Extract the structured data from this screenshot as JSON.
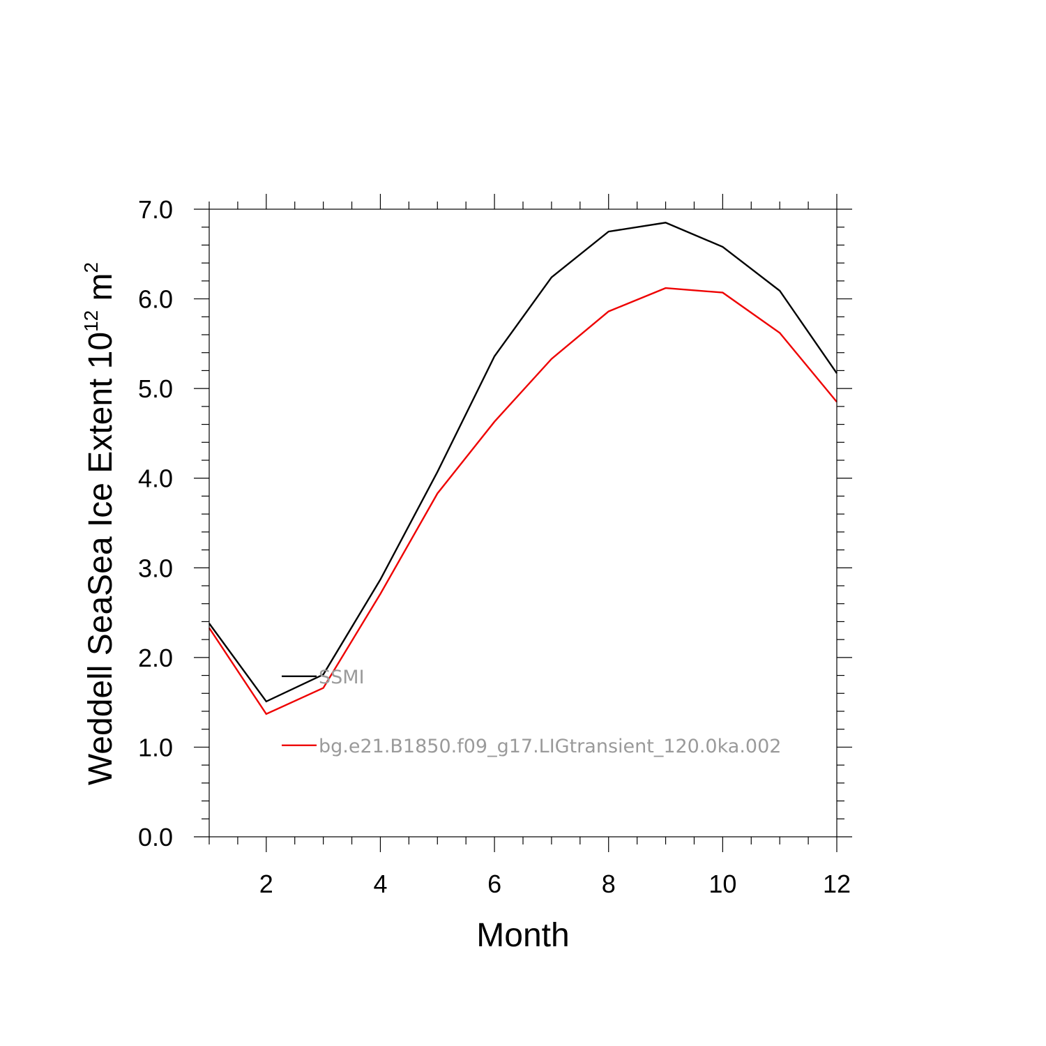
{
  "chart_data": {
    "type": "line",
    "title": "",
    "xlabel": "Month",
    "ylabel": {
      "main": "Weddell SeaSea Ice Extent 10",
      "sup1": "12",
      "mid": " m",
      "sup2": "2"
    },
    "xlim": [
      1,
      12
    ],
    "ylim": [
      0,
      7
    ],
    "xticks": [
      2,
      4,
      6,
      8,
      10,
      12
    ],
    "xtick_labels": [
      "2",
      "4",
      "6",
      "8",
      "10",
      "12"
    ],
    "x_minor_step": 0.5,
    "yticks": [
      0,
      1,
      2,
      3,
      4,
      5,
      6,
      7
    ],
    "ytick_labels": [
      "0.0",
      "1.0",
      "2.0",
      "3.0",
      "4.0",
      "5.0",
      "6.0",
      "7.0"
    ],
    "y_minor_step": 0.2,
    "grid": false,
    "legend_position": "inside-lower-left",
    "x": [
      1,
      2,
      3,
      4,
      5,
      6,
      7,
      8,
      9,
      10,
      11,
      12
    ],
    "series": [
      {
        "name": "SSMI",
        "color": "#000000",
        "values": [
          2.38,
          1.51,
          1.81,
          2.87,
          4.07,
          5.36,
          6.24,
          6.75,
          6.85,
          6.58,
          6.09,
          5.17
        ]
      },
      {
        "name": "bg.e21.B1850.f09_g17.LIGtransient_120.0ka.002",
        "color": "#ee0000",
        "values": [
          2.33,
          1.37,
          1.66,
          2.71,
          3.83,
          4.63,
          5.33,
          5.86,
          6.12,
          6.07,
          5.62,
          4.85
        ]
      }
    ]
  }
}
